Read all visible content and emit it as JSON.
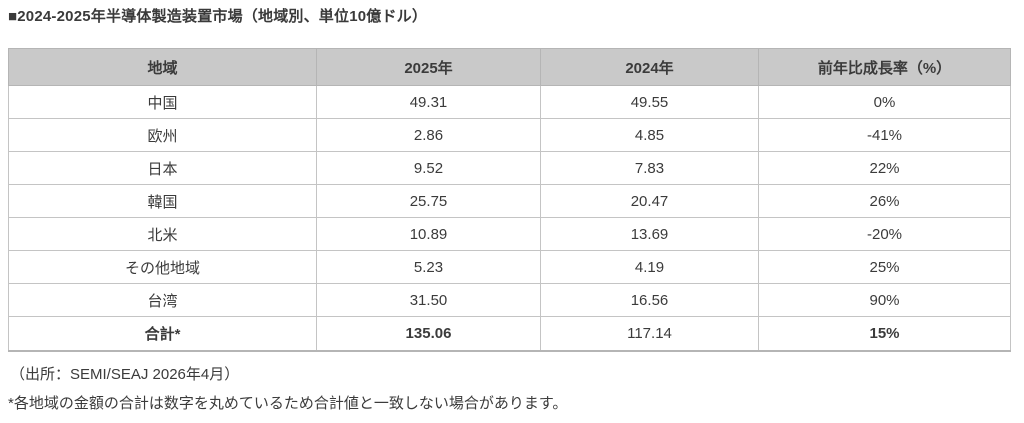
{
  "title": "■2024-2025年半導体製造装置市場（地域別、単位10億ドル）",
  "table": {
    "headers": [
      "地域",
      "2025年",
      "2024年",
      "前年比成長率（%）"
    ],
    "rows": [
      [
        "中国",
        "49.31",
        "49.55",
        "0%"
      ],
      [
        "欧州",
        "2.86",
        "4.85",
        "-41%"
      ],
      [
        "日本",
        "9.52",
        "7.83",
        "22%"
      ],
      [
        "韓国",
        "25.75",
        "20.47",
        "26%"
      ],
      [
        "北米",
        "10.89",
        "13.69",
        "-20%"
      ],
      [
        "その他地域",
        "5.23",
        "4.19",
        "25%"
      ],
      [
        "台湾",
        "31.50",
        "16.56",
        "90%"
      ]
    ],
    "total_row": [
      "合計*",
      "135.06",
      "117.14",
      "15%"
    ]
  },
  "source": "（出所：SEMI/SEAJ 2026年4月）",
  "note": "*各地域の金額の合計は数字を丸めているため合計値と一致しない場合があります。",
  "colors": {
    "header_bg": "#c9c9c9",
    "border": "#c4c4c4",
    "outer_border": "#b5b5b5",
    "text": "#3b3b3b",
    "background": "#ffffff"
  },
  "chart_data": {
    "type": "table",
    "title": "2024-2025年半導体製造装置市場（地域別、単位10億ドル）",
    "columns": [
      "地域",
      "2025年",
      "2024年",
      "前年比成長率（%）"
    ],
    "rows": [
      [
        "中国",
        49.31,
        49.55,
        "0%"
      ],
      [
        "欧州",
        2.86,
        4.85,
        "-41%"
      ],
      [
        "日本",
        9.52,
        7.83,
        "22%"
      ],
      [
        "韓国",
        25.75,
        20.47,
        "26%"
      ],
      [
        "北米",
        10.89,
        13.69,
        "-20%"
      ],
      [
        "その他地域",
        5.23,
        4.19,
        "25%"
      ],
      [
        "台湾",
        31.5,
        16.56,
        "90%"
      ],
      [
        "合計*",
        135.06,
        117.14,
        "15%"
      ]
    ],
    "units": "10億ドル",
    "source": "（出所：SEMI/SEAJ 2026年4月）",
    "note": "*各地域の金額の合計は数字を丸めているため合計値と一致しない場合があります。"
  }
}
